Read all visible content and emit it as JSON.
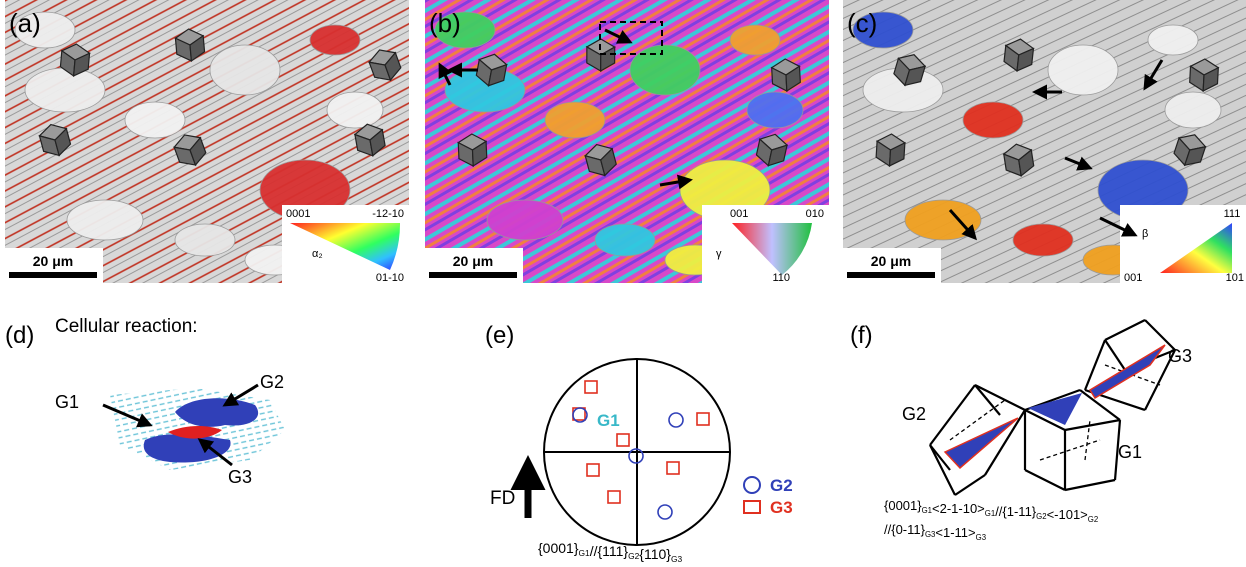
{
  "panels": [
    {
      "label": "(a)",
      "scale_bar": "20 μm",
      "key": {
        "top_left": "0001",
        "top_right": "-12-10",
        "bottom_right": "01-10",
        "symbol": "α₂"
      }
    },
    {
      "label": "(b)",
      "scale_bar": "20 μm",
      "key": {
        "top_left": "001",
        "top_right": "010",
        "bottom_right": "110",
        "symbol": "γ"
      }
    },
    {
      "label": "(c)",
      "scale_bar": "20 μm",
      "key": {
        "top_right": "111",
        "bottom_left": "001",
        "bottom_right": "101",
        "symbol": "β"
      }
    }
  ],
  "d": {
    "label": "(d)",
    "title": "Cellular reaction:",
    "grains": [
      "G1",
      "G2",
      "G3"
    ]
  },
  "e": {
    "label": "(e)",
    "grains": [
      "G1",
      "G2",
      "G3"
    ],
    "axis": "FD",
    "relation": [
      {
        "text": "{0001}",
        "sub": "G1"
      },
      {
        "text": "//{111}",
        "sub": "G2"
      },
      {
        "text": "{110}",
        "sub": "G3"
      }
    ]
  },
  "f": {
    "label": "(f)",
    "grains": [
      "G2",
      "G3",
      "G1"
    ],
    "relation_line1": [
      {
        "text": "{0001}",
        "sub": "G1"
      },
      {
        "text": "<2-1-10>",
        "sub": "G1"
      },
      {
        "text": "//{1-11}",
        "sub": "G2"
      },
      {
        "text": "<-101>",
        "sub": "G2"
      }
    ],
    "relation_line2": [
      {
        "text": "//{0-11}",
        "sub": "G3"
      },
      {
        "text": "<1-11>",
        "sub": "G3"
      }
    ]
  }
}
